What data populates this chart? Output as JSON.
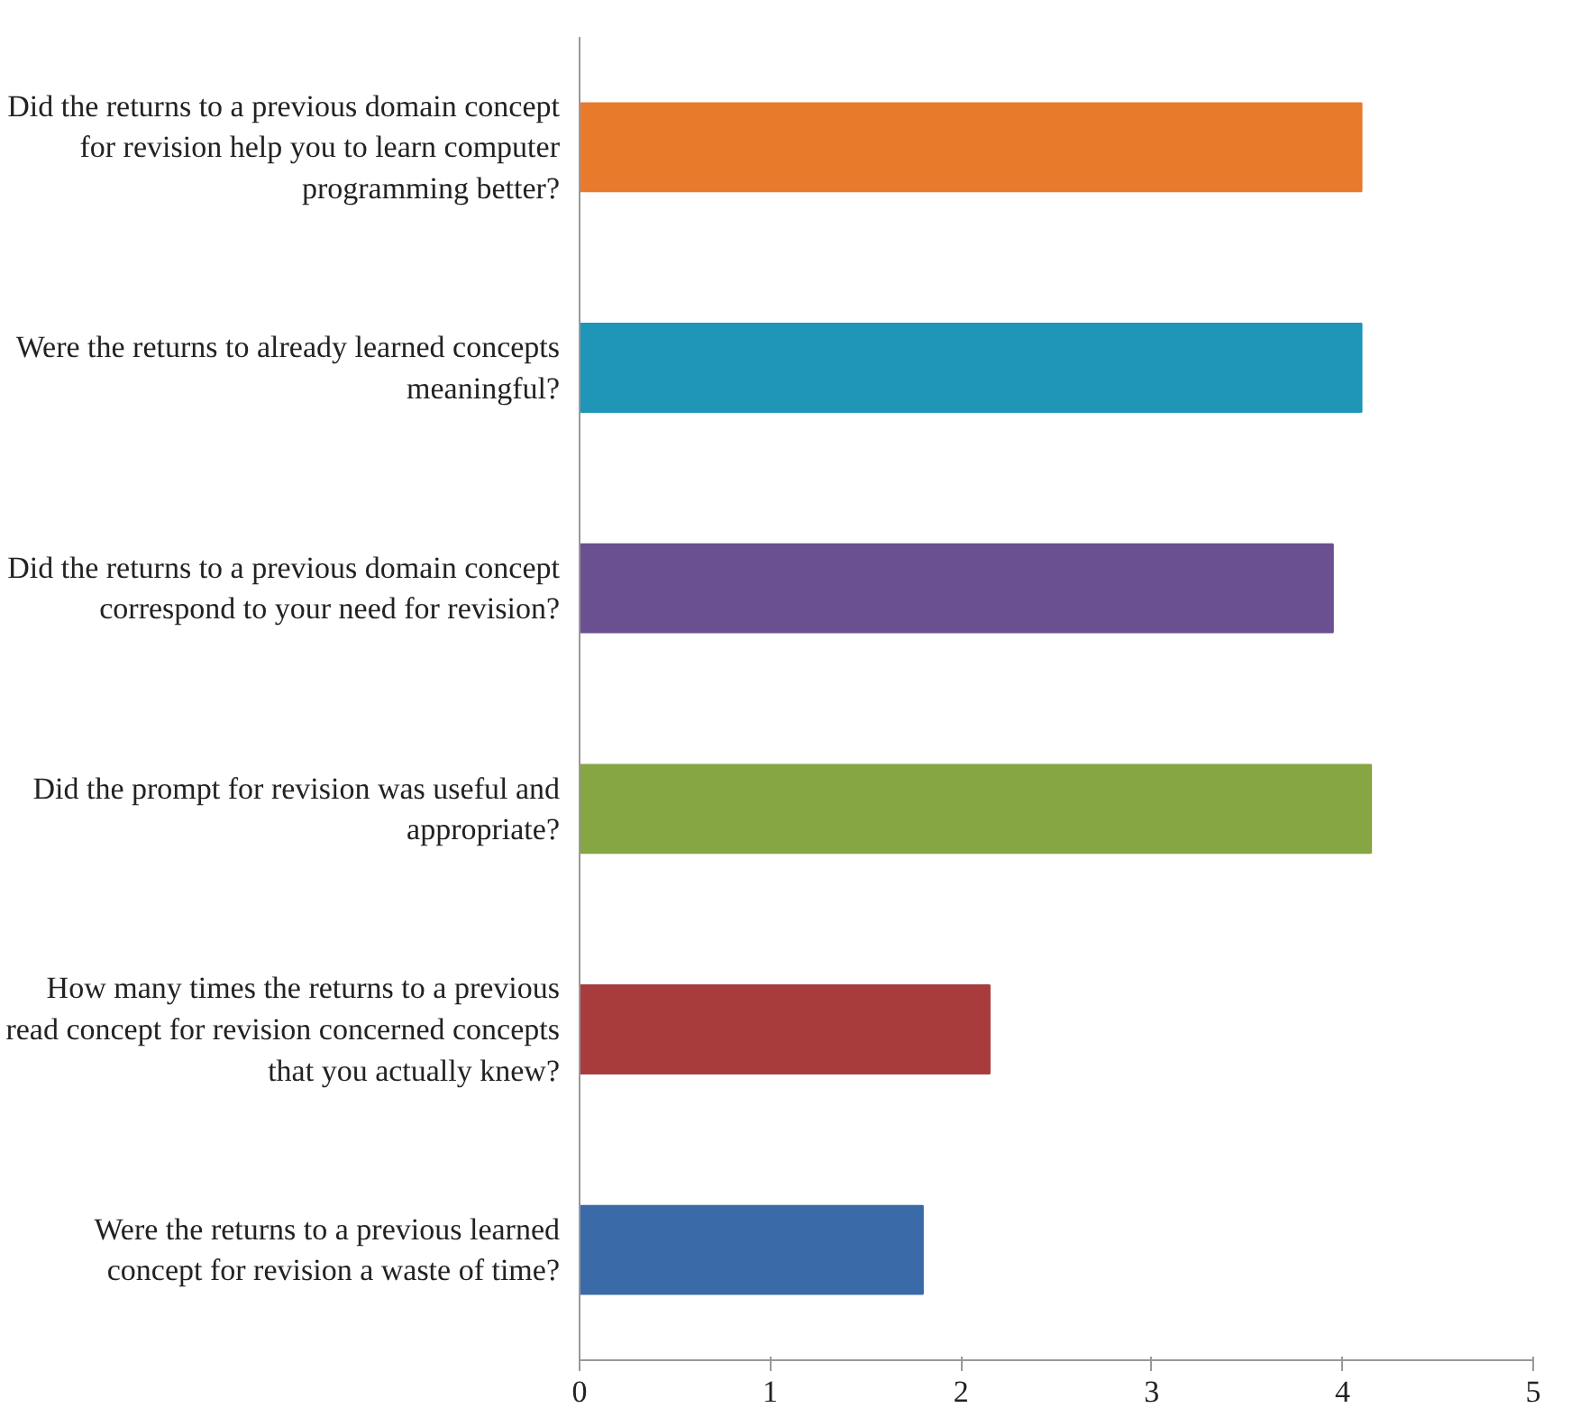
{
  "chart_data": {
    "type": "bar",
    "orientation": "horizontal",
    "categories": [
      "Did the returns to a previous domain concept for revision help you to learn computer programming better?",
      "Were the returns to already learned concepts meaningful?",
      "Did the returns to a previous domain concept correspond to your need for revision?",
      "Did the prompt for revision was useful and appropriate?",
      "How many times the returns to a previous read concept for revision concerned concepts that you actually knew?",
      "Were the returns to a previous learned concept for revision a waste of time?"
    ],
    "values": [
      4.1,
      4.1,
      3.95,
      4.15,
      2.15,
      1.8
    ],
    "colors": [
      "#e87a2c",
      "#1f96b8",
      "#6a5090",
      "#86a543",
      "#a83c3c",
      "#3a6aa8"
    ],
    "xlim": [
      0,
      5
    ],
    "xticks": [
      0,
      1,
      2,
      3,
      4,
      5
    ],
    "grid": false
  }
}
